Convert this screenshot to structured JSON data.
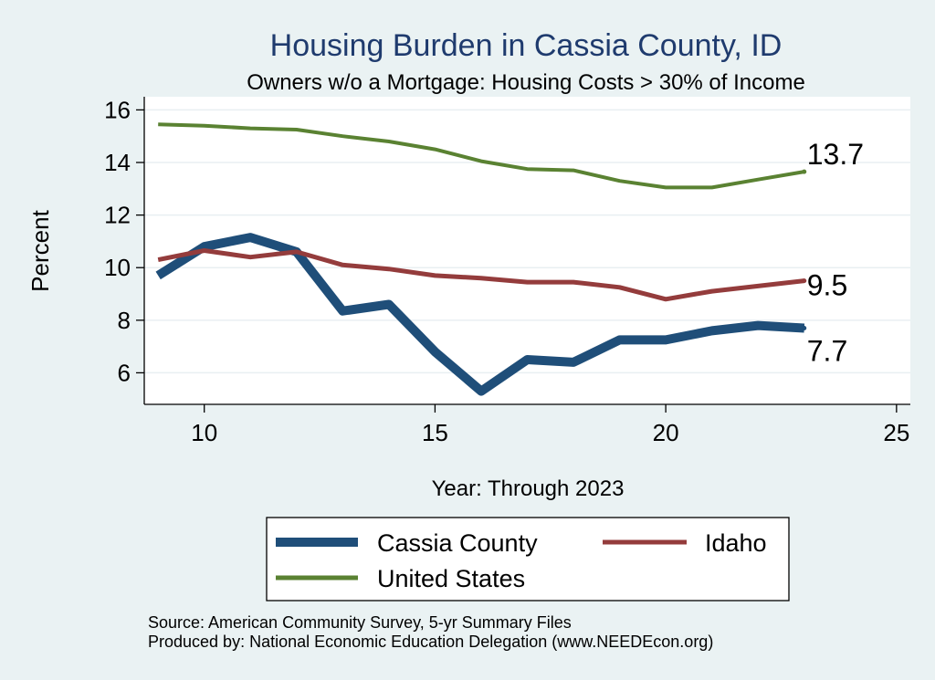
{
  "chart_data": {
    "type": "line",
    "title": "Housing Burden in Cassia County, ID",
    "subtitle": "Owners w/o a Mortgage: Housing Costs > 30% of Income",
    "xlabel": "Year: Through 2023",
    "ylabel": "Percent",
    "xlim": [
      8.7,
      25.3
    ],
    "ylim": [
      4.8,
      16.5
    ],
    "xticks": [
      10,
      15,
      20,
      25
    ],
    "yticks": [
      6,
      8,
      10,
      12,
      14,
      16
    ],
    "grid": true,
    "legend_position": "bottom",
    "series": [
      {
        "name": "Cassia County",
        "color": "#1f4e79",
        "x": [
          9,
          10,
          11,
          12,
          13,
          14,
          15,
          16,
          17,
          18,
          19,
          20,
          21,
          22,
          23
        ],
        "values": [
          9.7,
          10.8,
          11.15,
          10.6,
          8.35,
          8.6,
          6.8,
          5.3,
          6.5,
          6.4,
          7.25,
          7.25,
          7.6,
          7.8,
          7.7
        ],
        "end_label": "7.7"
      },
      {
        "name": "Idaho",
        "color": "#943c3c",
        "x": [
          9,
          10,
          11,
          12,
          13,
          14,
          15,
          16,
          17,
          18,
          19,
          20,
          21,
          22,
          23
        ],
        "values": [
          10.3,
          10.65,
          10.4,
          10.6,
          10.1,
          9.95,
          9.7,
          9.6,
          9.45,
          9.45,
          9.25,
          8.8,
          9.1,
          9.3,
          9.5
        ],
        "end_label": "9.5"
      },
      {
        "name": "United States",
        "color": "#5a8232",
        "x": [
          9,
          10,
          11,
          12,
          13,
          14,
          15,
          16,
          17,
          18,
          19,
          20,
          21,
          22,
          23
        ],
        "values": [
          15.45,
          15.4,
          15.3,
          15.25,
          15.0,
          14.8,
          14.5,
          14.05,
          13.75,
          13.7,
          13.3,
          13.05,
          13.05,
          13.35,
          13.65
        ],
        "end_label": "13.7"
      }
    ]
  },
  "legend": {
    "items": [
      "Cassia County",
      "Idaho",
      "United States"
    ]
  },
  "notes": {
    "source": "Source: American Community Survey, 5-yr Summary Files",
    "produced_by": "Produced by: National Economic Education Delegation (www.NEEDEcon.org)"
  }
}
